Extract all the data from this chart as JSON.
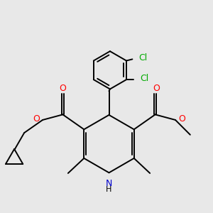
{
  "background_color": "#e8e8e8",
  "atom_colors": {
    "O": "#ff0000",
    "N": "#0000cc",
    "Cl": "#00aa00"
  },
  "bond_color": "#000000",
  "bond_width": 1.4,
  "figsize": [
    3.0,
    3.0
  ],
  "dpi": 100
}
